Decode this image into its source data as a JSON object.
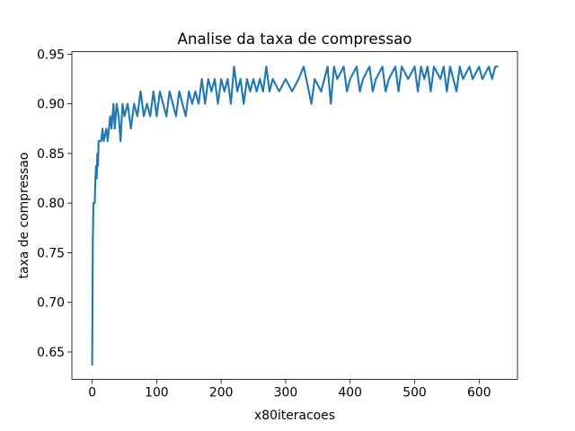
{
  "chart_data": {
    "type": "line",
    "title": "Analise da taxa de compressao",
    "xlabel": "x80iteracoes",
    "ylabel": "taxa de compressao",
    "x": [
      0,
      1,
      2,
      4,
      5,
      6,
      7,
      8,
      9,
      10,
      14,
      16,
      18,
      22,
      24,
      28,
      30,
      33,
      35,
      38,
      41,
      44,
      47,
      50,
      55,
      60,
      65,
      70,
      75,
      80,
      85,
      90,
      95,
      100,
      105,
      110,
      115,
      120,
      125,
      130,
      135,
      140,
      145,
      150,
      155,
      160,
      165,
      170,
      175,
      180,
      185,
      190,
      195,
      200,
      205,
      210,
      215,
      220,
      225,
      230,
      235,
      240,
      245,
      250,
      255,
      260,
      265,
      270,
      275,
      280,
      290,
      300,
      310,
      320,
      328,
      332,
      340,
      345,
      355,
      360,
      365,
      370,
      375,
      380,
      390,
      395,
      400,
      410,
      415,
      420,
      430,
      435,
      440,
      450,
      455,
      460,
      470,
      475,
      480,
      490,
      500,
      505,
      510,
      515,
      520,
      525,
      530,
      540,
      545,
      550,
      555,
      560,
      565,
      570,
      575,
      585,
      590,
      600,
      605,
      615,
      620,
      625,
      628
    ],
    "values": [
      0.6375,
      0.7625,
      0.8,
      0.8,
      0.825,
      0.8375,
      0.825,
      0.85,
      0.8375,
      0.8625,
      0.8625,
      0.875,
      0.8625,
      0.875,
      0.8625,
      0.8875,
      0.875,
      0.9,
      0.875,
      0.9,
      0.8875,
      0.8625,
      0.9,
      0.8875,
      0.9,
      0.875,
      0.9,
      0.8875,
      0.9125,
      0.8875,
      0.9,
      0.8875,
      0.9125,
      0.8875,
      0.9125,
      0.9,
      0.8875,
      0.9125,
      0.9,
      0.8875,
      0.9125,
      0.9,
      0.8875,
      0.9125,
      0.9,
      0.9125,
      0.9,
      0.925,
      0.9,
      0.925,
      0.9125,
      0.925,
      0.9,
      0.925,
      0.9125,
      0.925,
      0.9,
      0.9375,
      0.9125,
      0.925,
      0.9,
      0.925,
      0.9125,
      0.925,
      0.9125,
      0.925,
      0.9125,
      0.9375,
      0.9125,
      0.925,
      0.9125,
      0.925,
      0.9125,
      0.925,
      0.9375,
      0.925,
      0.9,
      0.925,
      0.9125,
      0.925,
      0.9375,
      0.9,
      0.9375,
      0.925,
      0.9375,
      0.9125,
      0.925,
      0.9375,
      0.9125,
      0.925,
      0.9375,
      0.9125,
      0.925,
      0.9375,
      0.9125,
      0.925,
      0.9375,
      0.9125,
      0.9375,
      0.925,
      0.9375,
      0.9125,
      0.9375,
      0.925,
      0.9375,
      0.9125,
      0.9375,
      0.925,
      0.9375,
      0.9125,
      0.9375,
      0.925,
      0.9125,
      0.9375,
      0.925,
      0.9375,
      0.925,
      0.9375,
      0.925,
      0.9375,
      0.925,
      0.9375,
      0.9375
    ],
    "color": "#1f77b4",
    "xlim": [
      -31.5,
      659.5
    ],
    "xticks": [
      0,
      100,
      200,
      300,
      400,
      500,
      600
    ],
    "ylim": [
      0.6225,
      0.9525
    ],
    "yticks": [
      0.65,
      {
        "value": 0.7,
        "label": "0.70"
      },
      0.75,
      {
        "value": 0.8,
        "label": "0.80"
      },
      0.85,
      {
        "value": 0.9,
        "label": "0.90"
      },
      0.95
    ],
    "grid": false
  }
}
